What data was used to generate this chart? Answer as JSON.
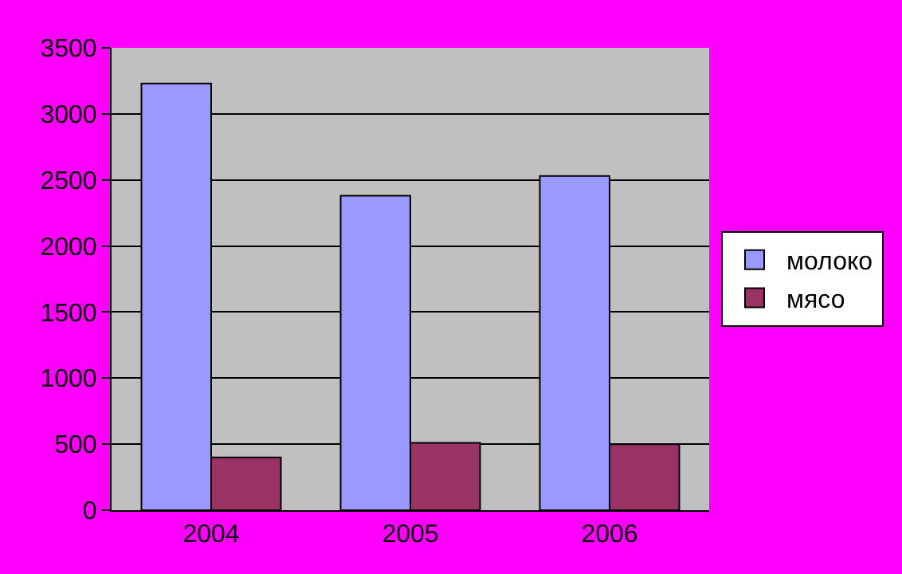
{
  "chart_data": {
    "type": "bar",
    "categories": [
      "2004",
      "2005",
      "2006"
    ],
    "series": [
      {
        "name": "молоко",
        "color": "#9999ff",
        "values": [
          3230,
          2380,
          2530
        ]
      },
      {
        "name": "мясо",
        "color": "#993366",
        "values": [
          400,
          510,
          500
        ]
      }
    ],
    "ylim": [
      0,
      3500
    ],
    "yticks": [
      0,
      500,
      1000,
      1500,
      2000,
      2500,
      3000,
      3500
    ],
    "grid": "y",
    "legend": "right"
  }
}
